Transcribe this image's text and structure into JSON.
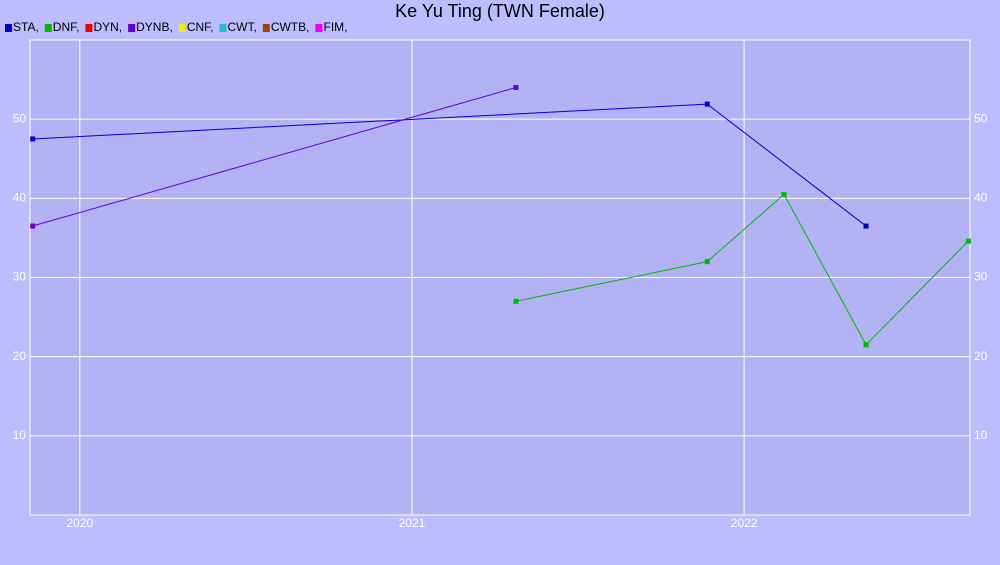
{
  "chart_data": {
    "type": "line",
    "title": "Ke Yu Ting (TWN Female)",
    "series": [
      {
        "name": "STA,",
        "color": "#0000cc",
        "x": [
          2019.858,
          2021.889,
          2022.367
        ],
        "values": [
          47.5,
          51.9,
          36.5
        ]
      },
      {
        "name": "DNF,",
        "color": "#00bb00",
        "x": [
          2021.313,
          2021.889,
          2022.12,
          2022.367,
          2022.675
        ],
        "values": [
          27.0,
          32.0,
          40.5,
          21.5,
          34.6
        ]
      },
      {
        "name": "DYN,",
        "color": "#ee0000",
        "x": [],
        "values": []
      },
      {
        "name": "DYNB,",
        "color": "#6600cc",
        "x": [
          2019.858,
          2021.313
        ],
        "values": [
          36.5,
          54.0
        ]
      },
      {
        "name": "CNF,",
        "color": "#eeee00",
        "x": [],
        "values": []
      },
      {
        "name": "CWT,",
        "color": "#22bbcc",
        "x": [],
        "values": []
      },
      {
        "name": "CWTB,",
        "color": "#994400",
        "x": [],
        "values": []
      },
      {
        "name": "FIM,",
        "color": "#ee00ee",
        "x": [],
        "values": []
      }
    ],
    "xlim": [
      2019.85,
      2022.68
    ],
    "xticks": [
      2020,
      2021,
      2022
    ],
    "ylim": [
      0,
      60
    ],
    "yticks": [
      10,
      20,
      30,
      40,
      50
    ],
    "grid": true
  }
}
